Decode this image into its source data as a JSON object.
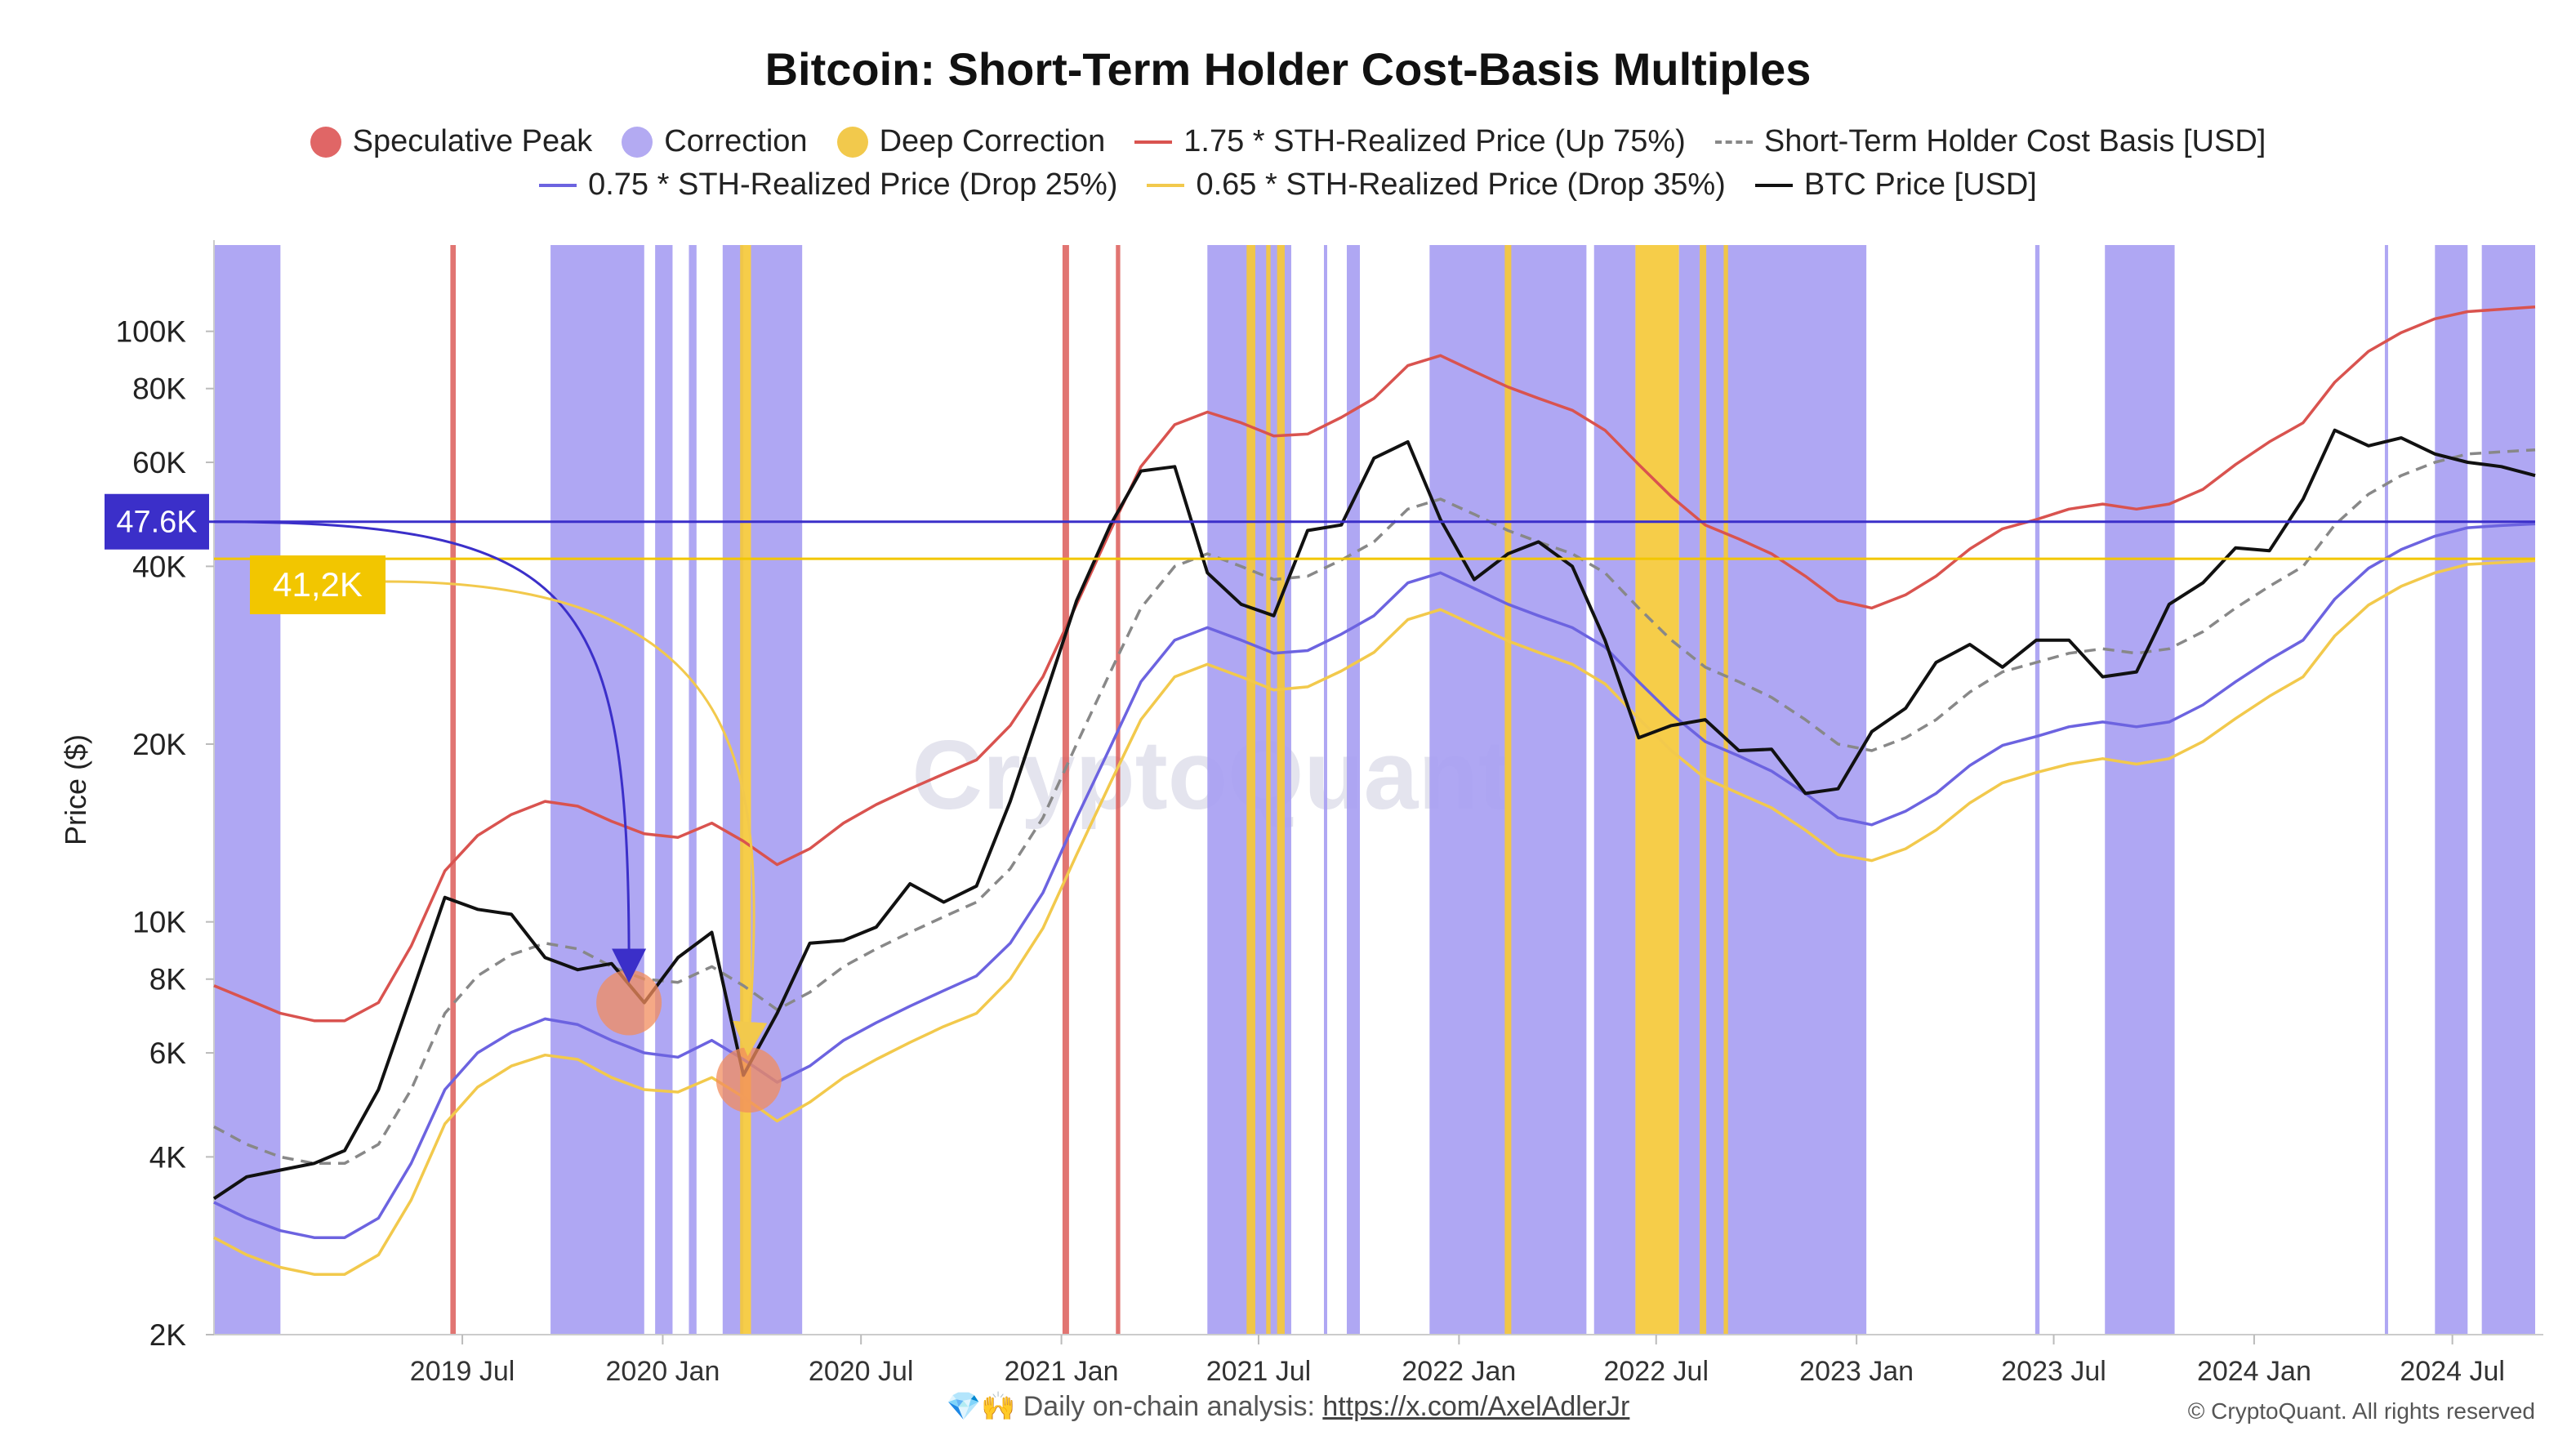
{
  "title": "Bitcoin: Short-Term Holder Cost-Basis Multiples",
  "footer": {
    "emoji": "💎🙌",
    "text": "Daily on-chain analysis: ",
    "link": "https://x.com/AxelAdlerJr",
    "copyright": "© CryptoQuant. All rights reserved"
  },
  "watermark": "CryptoQuant",
  "chart_data": {
    "type": "line",
    "title": "Bitcoin: Short-Term Holder Cost-Basis Multiples",
    "ylabel": "Price ($)",
    "yscale": "log",
    "ylim": [
      2000,
      140000
    ],
    "xlim": [
      "2018-11-15",
      "2024-09-15"
    ],
    "grid": false,
    "legend_position": "top",
    "y_ticks": [
      {
        "value": 2000,
        "label": "2K"
      },
      {
        "value": 4000,
        "label": "4K"
      },
      {
        "value": 6000,
        "label": "6K"
      },
      {
        "value": 8000,
        "label": "8K"
      },
      {
        "value": 10000,
        "label": "10K"
      },
      {
        "value": 20000,
        "label": "20K"
      },
      {
        "value": 40000,
        "label": "40K"
      },
      {
        "value": 60000,
        "label": "60K"
      },
      {
        "value": 80000,
        "label": "80K"
      },
      {
        "value": 100000,
        "label": "100K"
      }
    ],
    "x_ticks": [
      {
        "value": "2019-07-01",
        "label": "2019 Jul"
      },
      {
        "value": "2020-01-01",
        "label": "2020 Jan"
      },
      {
        "value": "2020-07-01",
        "label": "2020 Jul"
      },
      {
        "value": "2021-01-01",
        "label": "2021 Jan"
      },
      {
        "value": "2021-07-01",
        "label": "2021 Jul"
      },
      {
        "value": "2022-01-01",
        "label": "2022 Jan"
      },
      {
        "value": "2022-07-01",
        "label": "2022 Jul"
      },
      {
        "value": "2023-01-01",
        "label": "2023 Jan"
      },
      {
        "value": "2023-07-01",
        "label": "2023 Jul"
      },
      {
        "value": "2024-01-01",
        "label": "2024 Jan"
      },
      {
        "value": "2024-07-01",
        "label": "2024 Jul"
      }
    ],
    "legend": [
      {
        "name": "Speculative Peak",
        "kind": "dot",
        "color": "#e06666"
      },
      {
        "name": "Correction",
        "kind": "dot",
        "color": "#b3aaf2"
      },
      {
        "name": "Deep Correction",
        "kind": "dot",
        "color": "#f2c94c"
      },
      {
        "name": "1.75 * STH-Realized Price (Up 75%)",
        "kind": "line",
        "color": "#d9534f"
      },
      {
        "name": "Short-Term Holder Cost Basis [USD]",
        "kind": "dashed",
        "color": "#888888"
      },
      {
        "name": "0.75 * STH-Realized Price  (Drop 25%)",
        "kind": "line",
        "color": "#6c63e0"
      },
      {
        "name": "0.65 * STH-Realized Price (Drop 35%)",
        "kind": "line",
        "color": "#f2c94c"
      },
      {
        "name": "BTC Price [USD]",
        "kind": "line",
        "color": "#111111"
      }
    ],
    "x": [
      "2018-11-15",
      "2018-12-15",
      "2019-01-15",
      "2019-02-15",
      "2019-03-15",
      "2019-04-15",
      "2019-05-15",
      "2019-06-15",
      "2019-07-15",
      "2019-08-15",
      "2019-09-15",
      "2019-10-15",
      "2019-11-15",
      "2019-12-15",
      "2020-01-15",
      "2020-02-15",
      "2020-03-15",
      "2020-04-15",
      "2020-05-15",
      "2020-06-15",
      "2020-07-15",
      "2020-08-15",
      "2020-09-15",
      "2020-10-15",
      "2020-11-15",
      "2020-12-15",
      "2021-01-15",
      "2021-02-15",
      "2021-03-15",
      "2021-04-15",
      "2021-05-15",
      "2021-06-15",
      "2021-07-15",
      "2021-08-15",
      "2021-09-15",
      "2021-10-15",
      "2021-11-15",
      "2021-12-15",
      "2022-01-15",
      "2022-02-15",
      "2022-03-15",
      "2022-04-15",
      "2022-05-15",
      "2022-06-15",
      "2022-07-15",
      "2022-08-15",
      "2022-09-15",
      "2022-10-15",
      "2022-11-15",
      "2022-12-15",
      "2023-01-15",
      "2023-02-15",
      "2023-03-15",
      "2023-04-15",
      "2023-05-15",
      "2023-06-15",
      "2023-07-15",
      "2023-08-15",
      "2023-09-15",
      "2023-10-15",
      "2023-11-15",
      "2023-12-15",
      "2024-01-15",
      "2024-02-15",
      "2024-03-15",
      "2024-04-15",
      "2024-05-15",
      "2024-06-15",
      "2024-07-15",
      "2024-08-15",
      "2024-09-15"
    ],
    "series": [
      {
        "name": "BTC Price [USD]",
        "color": "#111111",
        "style": "solid",
        "values": [
          3400,
          3700,
          3800,
          3900,
          4100,
          5200,
          7500,
          11000,
          10500,
          10300,
          8700,
          8300,
          8500,
          7300,
          8700,
          9600,
          5500,
          7000,
          9200,
          9300,
          9800,
          11600,
          10800,
          11500,
          16000,
          23500,
          35000,
          47000,
          58000,
          59000,
          39000,
          34500,
          33000,
          46000,
          47000,
          61000,
          65000,
          48000,
          38000,
          42000,
          44000,
          40000,
          30000,
          20500,
          21500,
          22000,
          19500,
          19600,
          16500,
          16800,
          21000,
          23000,
          27500,
          29500,
          27000,
          30000,
          30000,
          26000,
          26500,
          34500,
          37500,
          43000,
          42500,
          52000,
          68000,
          64000,
          66000,
          62000,
          60000,
          59000,
          57000
        ]
      },
      {
        "name": "Short-Term Holder Cost Basis [USD]",
        "color": "#888888",
        "style": "dashed",
        "values": [
          4500,
          4200,
          4000,
          3900,
          3900,
          4200,
          5200,
          7000,
          8100,
          8800,
          9200,
          9000,
          8400,
          8000,
          7900,
          8400,
          7800,
          7100,
          7600,
          8400,
          9000,
          9600,
          10200,
          10800,
          12300,
          15000,
          20000,
          26500,
          34000,
          40000,
          42000,
          40000,
          38000,
          38500,
          41000,
          44000,
          50000,
          52000,
          49000,
          46000,
          44000,
          42000,
          39000,
          34000,
          30000,
          27000,
          25500,
          24000,
          22000,
          20000,
          19500,
          20500,
          22000,
          24500,
          26500,
          27500,
          28500,
          29000,
          28500,
          29000,
          31000,
          34000,
          37000,
          40000,
          47000,
          53000,
          57000,
          60000,
          62000,
          62500,
          63000
        ]
      },
      {
        "name": "1.75 * STH-Realized Price (Up 75%)",
        "color": "#d9534f",
        "style": "solid",
        "values": [
          7800,
          7400,
          7000,
          6800,
          6800,
          7300,
          9100,
          12200,
          14000,
          15200,
          16000,
          15700,
          14800,
          14100,
          13900,
          14700,
          13700,
          12500,
          13300,
          14700,
          15800,
          16800,
          17800,
          18800,
          21500,
          26000,
          34500,
          46000,
          59000,
          69500,
          73000,
          70000,
          66500,
          67000,
          71500,
          77000,
          87500,
          91000,
          85500,
          80500,
          77000,
          73500,
          68000,
          59500,
          52500,
          47000,
          44500,
          42000,
          38500,
          35000,
          34000,
          35800,
          38500,
          42800,
          46300,
          48000,
          50000,
          51000,
          50000,
          51000,
          54000,
          59500,
          65000,
          70000,
          82000,
          92500,
          99500,
          105000,
          108000,
          109000,
          110000
        ]
      },
      {
        "name": "0.75 * STH-Realized Price  (Drop 25%)",
        "color": "#6c63e0",
        "style": "solid",
        "values": [
          3350,
          3150,
          3000,
          2920,
          2920,
          3150,
          3900,
          5200,
          6000,
          6500,
          6850,
          6700,
          6300,
          6000,
          5900,
          6300,
          5850,
          5350,
          5700,
          6300,
          6750,
          7200,
          7650,
          8100,
          9200,
          11200,
          15000,
          19800,
          25500,
          30000,
          31500,
          30000,
          28500,
          28800,
          30700,
          33000,
          37500,
          39000,
          36700,
          34500,
          33000,
          31500,
          29200,
          25500,
          22500,
          20200,
          19100,
          18000,
          16500,
          15000,
          14600,
          15400,
          16500,
          18400,
          19900,
          20600,
          21400,
          21800,
          21400,
          21800,
          23300,
          25500,
          27800,
          30000,
          35200,
          39700,
          42700,
          45000,
          46500,
          46900,
          47200
        ]
      },
      {
        "name": "0.65 * STH-Realized Price (Drop 35%)",
        "color": "#f2c94c",
        "style": "solid",
        "values": [
          2920,
          2730,
          2600,
          2530,
          2530,
          2730,
          3380,
          4550,
          5250,
          5700,
          5950,
          5850,
          5450,
          5200,
          5150,
          5450,
          5050,
          4600,
          4950,
          5450,
          5850,
          6250,
          6650,
          7000,
          8000,
          9750,
          13000,
          17200,
          22000,
          26000,
          27300,
          26000,
          24700,
          25000,
          26600,
          28600,
          32500,
          33800,
          31800,
          29900,
          28600,
          27300,
          25300,
          22100,
          19500,
          17500,
          16500,
          15600,
          14300,
          13000,
          12700,
          13300,
          14300,
          15900,
          17200,
          17900,
          18500,
          18900,
          18500,
          18900,
          20200,
          22100,
          24100,
          26000,
          30500,
          34400,
          37000,
          39000,
          40300,
          40600,
          40900
        ]
      }
    ],
    "regimes": [
      {
        "type": "Correction",
        "start": "2018-11-15",
        "end": "2019-01-15"
      },
      {
        "type": "Speculative Peak",
        "start": "2019-06-20",
        "end": "2019-06-25"
      },
      {
        "type": "Correction",
        "start": "2019-09-20",
        "end": "2019-12-15"
      },
      {
        "type": "Correction",
        "start": "2019-12-25",
        "end": "2020-01-10"
      },
      {
        "type": "Correction",
        "start": "2020-01-25",
        "end": "2020-02-01"
      },
      {
        "type": "Correction",
        "start": "2020-02-25",
        "end": "2020-03-15"
      },
      {
        "type": "Deep Correction",
        "start": "2020-03-12",
        "end": "2020-03-22"
      },
      {
        "type": "Correction",
        "start": "2020-03-22",
        "end": "2020-05-08"
      },
      {
        "type": "Speculative Peak",
        "start": "2021-01-02",
        "end": "2021-01-08"
      },
      {
        "type": "Speculative Peak",
        "start": "2021-02-20",
        "end": "2021-02-24"
      },
      {
        "type": "Correction",
        "start": "2021-05-15",
        "end": "2021-07-31"
      },
      {
        "type": "Deep Correction",
        "start": "2021-06-20",
        "end": "2021-06-28"
      },
      {
        "type": "Deep Correction",
        "start": "2021-07-08",
        "end": "2021-07-12"
      },
      {
        "type": "Deep Correction",
        "start": "2021-07-18",
        "end": "2021-07-25"
      },
      {
        "type": "Correction",
        "start": "2021-08-30",
        "end": "2021-09-02"
      },
      {
        "type": "Correction",
        "start": "2021-09-20",
        "end": "2021-10-02"
      },
      {
        "type": "Correction",
        "start": "2021-12-05",
        "end": "2022-04-28"
      },
      {
        "type": "Deep Correction",
        "start": "2022-02-12",
        "end": "2022-02-18"
      },
      {
        "type": "Correction",
        "start": "2022-05-05",
        "end": "2022-06-12"
      },
      {
        "type": "Deep Correction",
        "start": "2022-06-12",
        "end": "2022-07-22"
      },
      {
        "type": "Correction",
        "start": "2022-07-22",
        "end": "2023-01-10"
      },
      {
        "type": "Deep Correction",
        "start": "2022-08-10",
        "end": "2022-08-16"
      },
      {
        "type": "Deep Correction",
        "start": "2022-09-01",
        "end": "2022-09-05"
      },
      {
        "type": "Correction",
        "start": "2023-06-14",
        "end": "2023-06-18"
      },
      {
        "type": "Correction",
        "start": "2023-08-17",
        "end": "2023-10-20"
      },
      {
        "type": "Correction",
        "start": "2024-04-30",
        "end": "2024-05-03"
      },
      {
        "type": "Correction",
        "start": "2024-06-15",
        "end": "2024-07-15"
      },
      {
        "type": "Correction",
        "start": "2024-07-28",
        "end": "2024-09-15"
      }
    ],
    "horizontal_lines": [
      {
        "value": 47600,
        "label": "47.6K",
        "color": "#3b2fc9"
      },
      {
        "value": 41200,
        "label": "41,2K",
        "color": "#f2c600"
      }
    ],
    "annotations": [
      {
        "label": "47.6K",
        "target_date": "2019-12-01",
        "target_value": 7300,
        "color": "#3b2fc9"
      },
      {
        "label": "41,2K",
        "target_date": "2020-03-20",
        "target_value": 5400,
        "color": "#f2c94c"
      }
    ],
    "highlights": [
      {
        "date": "2019-12-01",
        "value": 7300,
        "color": "#f28c5e"
      },
      {
        "date": "2020-03-20",
        "value": 5400,
        "color": "#f28c5e"
      }
    ]
  }
}
